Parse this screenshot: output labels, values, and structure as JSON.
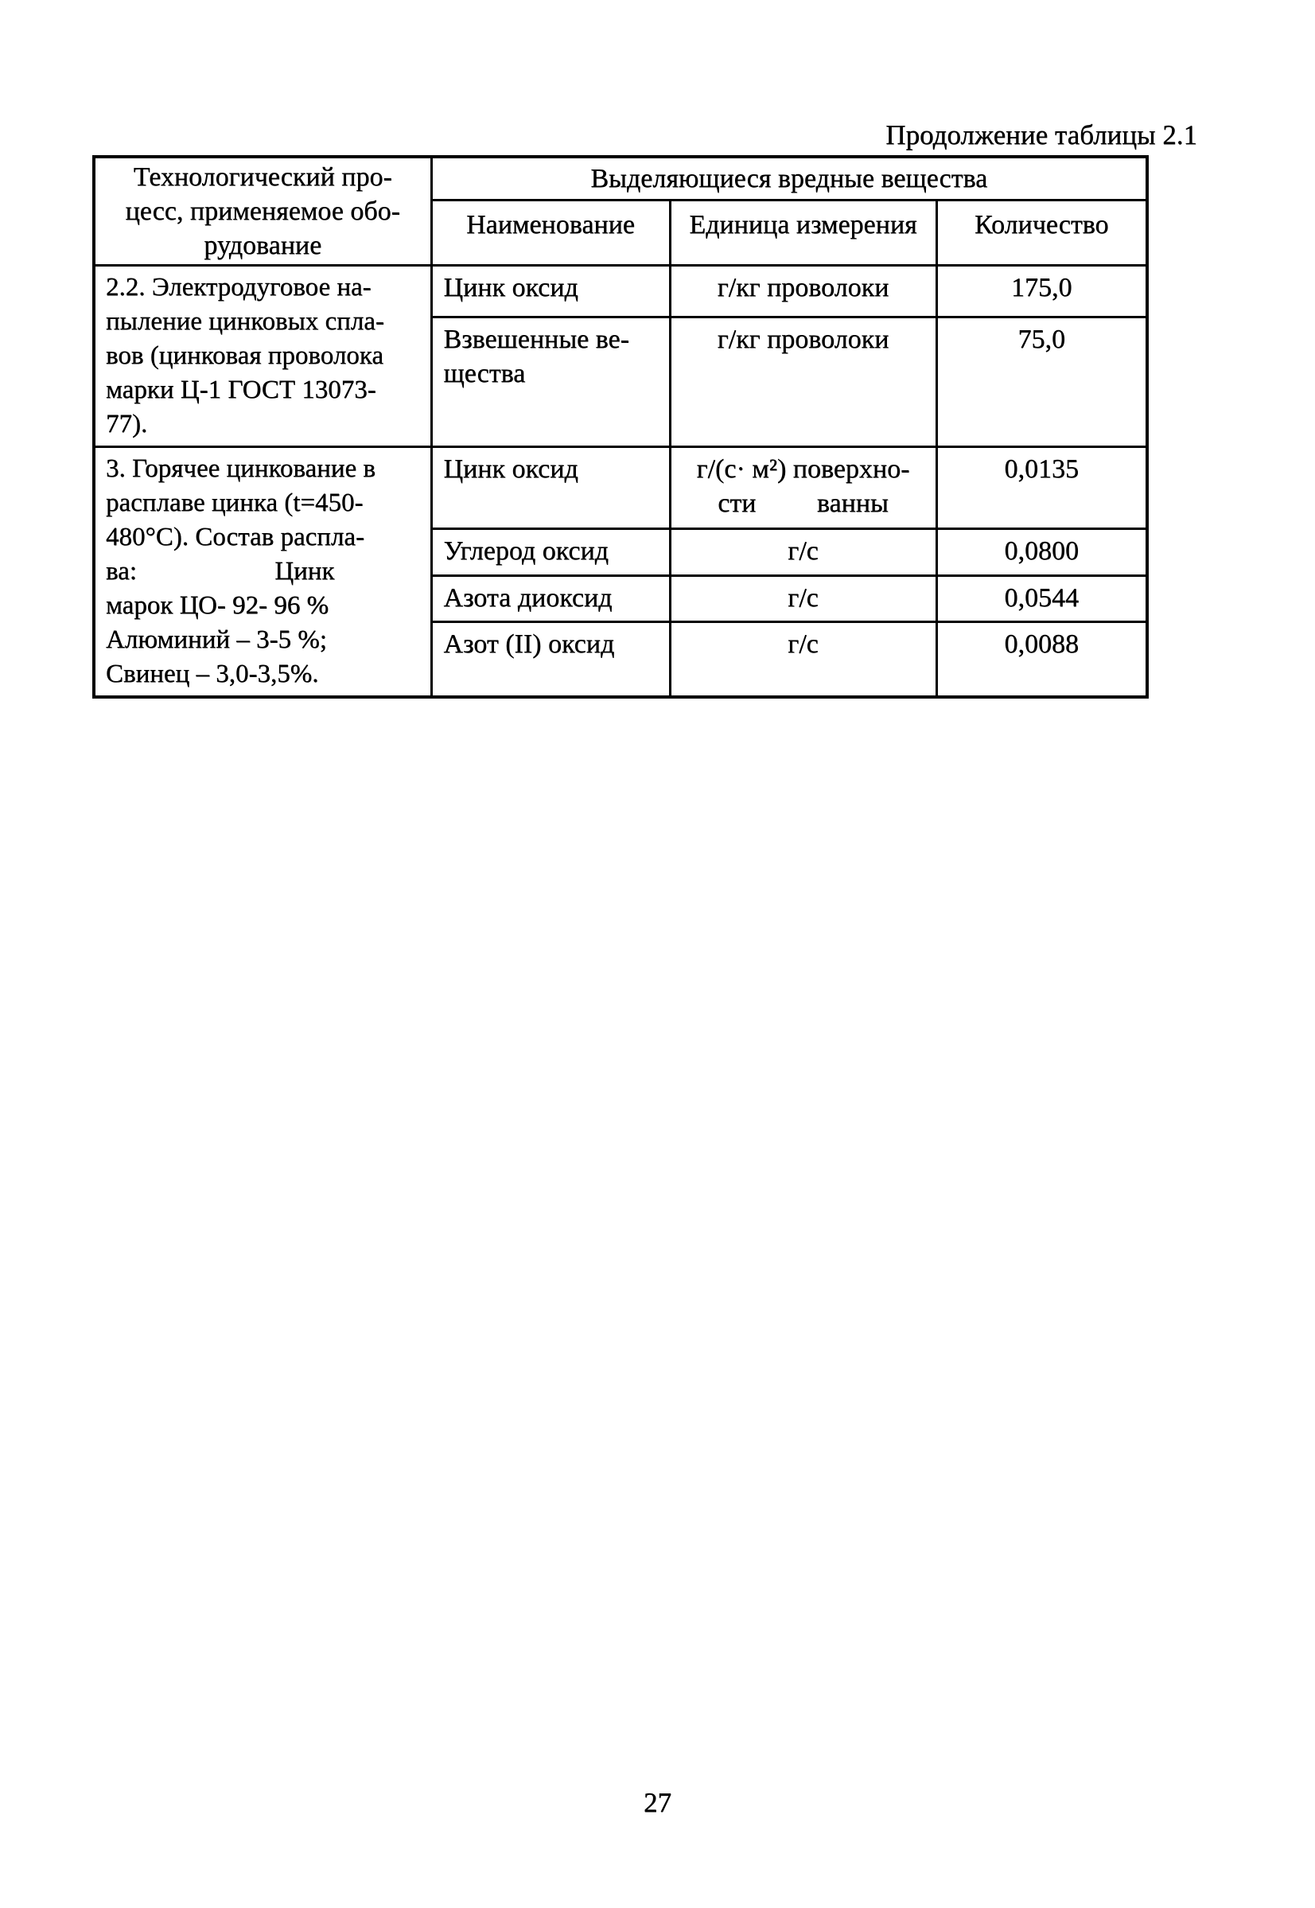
{
  "page": {
    "caption": "Продолжение таблицы 2.1",
    "page_number": "27"
  },
  "table": {
    "header": {
      "process_column_lines": [
        "Технологический про-",
        "цесс, применяемое обо-",
        "рудование"
      ],
      "substances_group_label": "Выделяющиеся вредные вещества",
      "sub_columns": {
        "name": "Наименование",
        "unit": "Единица измерения",
        "quantity": "Количество"
      }
    },
    "blocks": [
      {
        "process_lines": [
          "2.2. Электродуговое на-",
          "пыление цинковых спла-",
          "вов (цинковая проволока",
          "марки Ц-1 ГОСТ 13073-",
          "77)."
        ],
        "rows": [
          {
            "name_lines": [
              "Цинк оксид"
            ],
            "unit_lines": [
              "г/кг проволоки"
            ],
            "quantity": "175,0"
          },
          {
            "name_lines": [
              "Взвешенные ве-",
              "щества"
            ],
            "unit_lines": [
              "г/кг проволоки"
            ],
            "quantity": "75,0"
          }
        ]
      },
      {
        "process_lines": [
          "3. Горячее цинкование в",
          "расплаве цинка (t=450-",
          "480°С). Состав распла-",
          "ва:                     Цинк",
          "марок ЦО- 92- 96 %",
          "Алюминий – 3-5 %;",
          "Свинец – 3,0-3,5%."
        ],
        "rows": [
          {
            "name_lines": [
              "Цинк оксид"
            ],
            "unit_lines": [
              "г/(с· м²) поверхно-",
              "сти         ванны"
            ],
            "quantity": "0,0135"
          },
          {
            "name_lines": [
              "Углерод оксид"
            ],
            "unit_lines": [
              "г/с"
            ],
            "quantity": "0,0800"
          },
          {
            "name_lines": [
              "Азота диоксид"
            ],
            "unit_lines": [
              "г/с"
            ],
            "quantity": "0,0544"
          },
          {
            "name_lines": [
              "Азот (II) оксид"
            ],
            "unit_lines": [
              "г/с"
            ],
            "quantity": "0,0088"
          }
        ]
      }
    ]
  }
}
